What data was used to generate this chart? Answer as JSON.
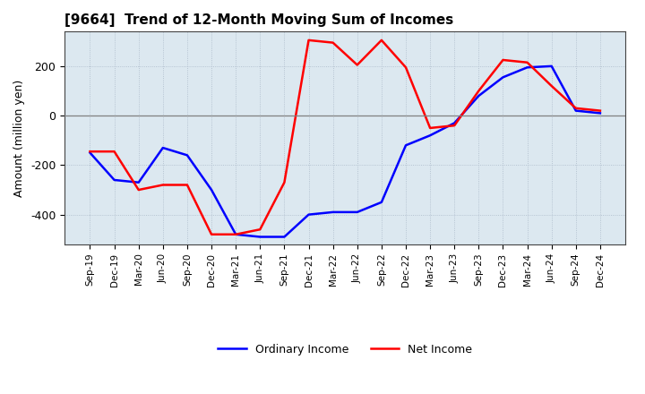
{
  "title": "[9664]  Trend of 12-Month Moving Sum of Incomes",
  "ylabel": "Amount (million yen)",
  "x_labels": [
    "Sep-19",
    "Dec-19",
    "Mar-20",
    "Jun-20",
    "Sep-20",
    "Dec-20",
    "Mar-21",
    "Jun-21",
    "Sep-21",
    "Dec-21",
    "Mar-22",
    "Jun-22",
    "Sep-22",
    "Dec-22",
    "Mar-23",
    "Jun-23",
    "Sep-23",
    "Dec-23",
    "Mar-24",
    "Jun-24",
    "Sep-24",
    "Dec-24"
  ],
  "ordinary_income": [
    -150,
    -260,
    -270,
    -130,
    -160,
    -300,
    -480,
    -490,
    -490,
    -400,
    -390,
    -390,
    -350,
    -120,
    -80,
    -30,
    80,
    155,
    195,
    200,
    20,
    10
  ],
  "net_income": [
    -145,
    -145,
    -300,
    -280,
    -280,
    -480,
    -480,
    -460,
    -270,
    305,
    295,
    205,
    305,
    195,
    -50,
    -40,
    100,
    225,
    215,
    120,
    30,
    20
  ],
  "ordinary_income_color": "#0000FF",
  "net_income_color": "#FF0000",
  "ylim_min": -520,
  "ylim_max": 340,
  "yticks": [
    -400,
    -200,
    0,
    200
  ],
  "legend_ordinary": "Ordinary Income",
  "legend_net": "Net Income",
  "plot_bg_color": "#dce8f0",
  "fig_bg_color": "#ffffff",
  "grid_color": "#aab8c8",
  "zero_line_color": "#808080",
  "line_width": 1.8
}
